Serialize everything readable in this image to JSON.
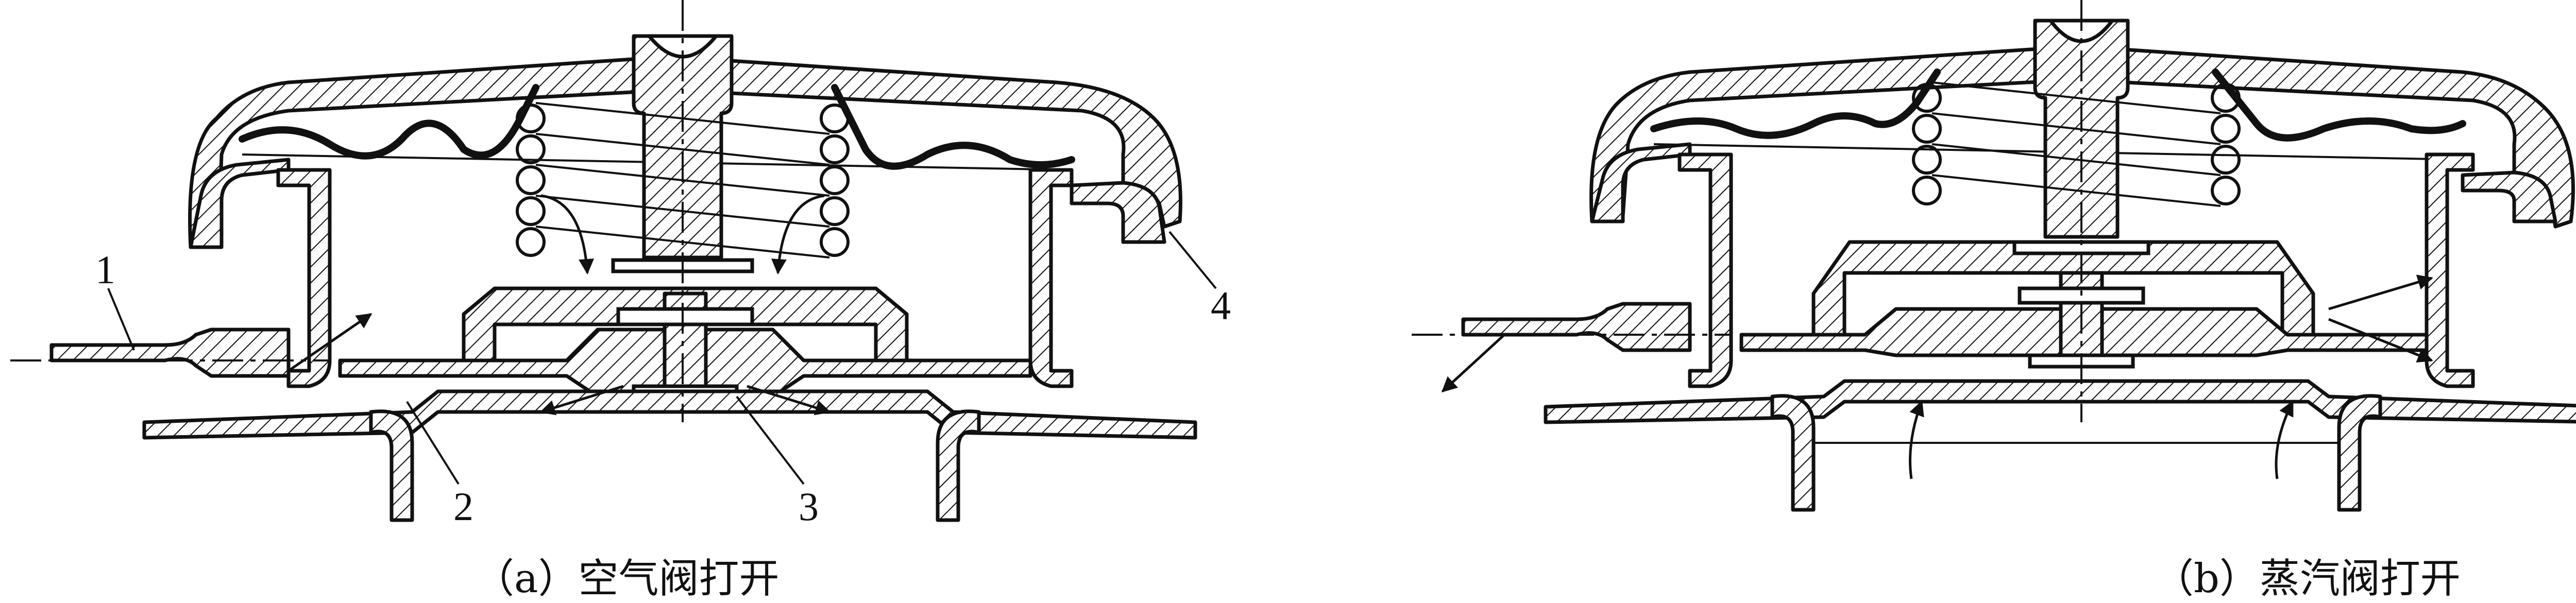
{
  "labels": {
    "part1": "1",
    "part2": "2",
    "part3": "3",
    "part4": "4"
  },
  "captions": {
    "left": "（a）空气阀打开",
    "right": "（b）蒸汽阀打开"
  }
}
